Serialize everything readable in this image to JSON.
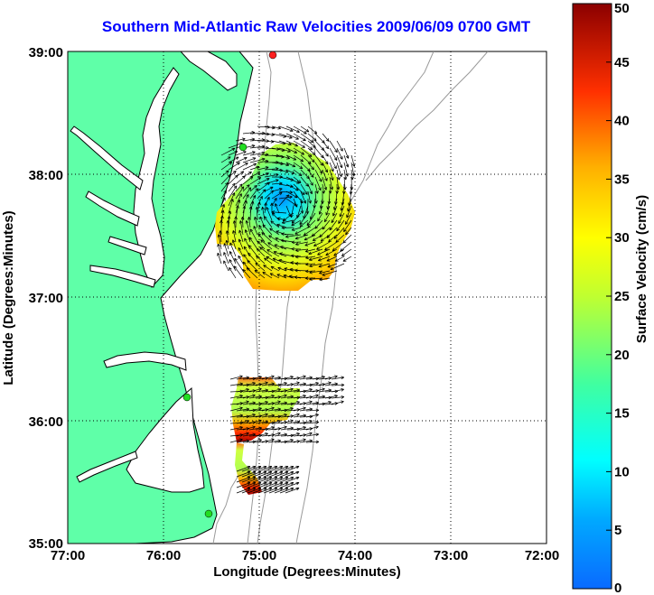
{
  "title": "Southern Mid-Atlantic Raw Velocities 2009/06/09 0700 GMT",
  "map": {
    "xlabel": "Longitude (Degrees:Minutes)",
    "ylabel": "Latitude (Degrees:Minutes)",
    "x_ticks": [
      "77:00",
      "76:00",
      "75:00",
      "74:00",
      "73:00",
      "72:00"
    ],
    "y_ticks": [
      "39:00",
      "38:00",
      "37:00",
      "36:00",
      "35:00"
    ],
    "lon_range": [
      -77,
      -72
    ],
    "lat_range": [
      35,
      39
    ],
    "grid": "dotted",
    "land_color": "#5fffa8",
    "coast_color": "#000000",
    "bathymetry_color": "#9a9a9a",
    "site_marker_color": "#22dd22"
  },
  "colorbar": {
    "label": "Surface Velocity (cm/s)",
    "ticks": [
      "50",
      "45",
      "40",
      "35",
      "30",
      "25",
      "20",
      "15",
      "10",
      "5",
      "0"
    ],
    "range": [
      0,
      50
    ],
    "colormap": "jet"
  }
}
